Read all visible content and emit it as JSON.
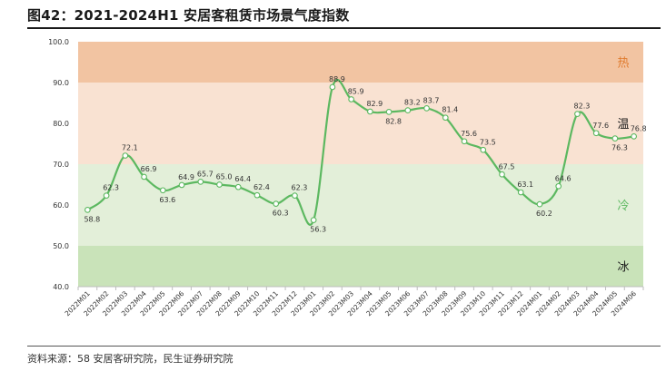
{
  "title": "图42：2021-2024H1 安居客租赁市场景气度指数",
  "source": "资料来源：58 安居客研究院，民生证券研究院",
  "chart_data": {
    "type": "line",
    "title": "图42：2021-2024H1 安居客租赁市场景气度指数",
    "xlabel": "",
    "ylabel": "",
    "ylim": [
      40.0,
      100.0
    ],
    "yticks": [
      40.0,
      50.0,
      60.0,
      70.0,
      80.0,
      90.0,
      100.0
    ],
    "grid": false,
    "categories": [
      "2022M01",
      "2022M02",
      "2022M03",
      "2022M04",
      "2022M05",
      "2022M06",
      "2022M07",
      "2022M08",
      "2022M09",
      "2022M10",
      "2022M11",
      "2022M12",
      "2023M01",
      "2023M02",
      "2023M03",
      "2023M04",
      "2023M05",
      "2023M06",
      "2023M07",
      "2023M08",
      "2023M09",
      "2023M10",
      "2023M11",
      "2023M12",
      "2024M01",
      "2024M02",
      "2024M03",
      "2024M04",
      "2024M05",
      "2024M06"
    ],
    "series": [
      {
        "values": [
          58.8,
          62.3,
          72.1,
          66.9,
          63.6,
          64.9,
          65.7,
          65.0,
          64.4,
          62.4,
          60.3,
          62.3,
          56.3,
          88.9,
          85.9,
          82.9,
          82.8,
          83.2,
          83.7,
          81.4,
          75.6,
          73.5,
          67.5,
          63.1,
          60.2,
          64.6,
          82.3,
          77.6,
          76.3,
          76.8
        ],
        "color": "#5cb860"
      }
    ],
    "value_labels": [
      "58.8",
      "62.3",
      "72.1",
      "66.9",
      "63.6",
      "64.9",
      "65.7",
      "65.0",
      "64.4",
      "62.4",
      "60.3",
      "62.3",
      "56.3",
      "88.9",
      "85.9",
      "82.9",
      "82.8",
      "83.2",
      "83.7",
      "81.4",
      "75.6",
      "73.5",
      "67.5",
      "63.1",
      "60.2",
      "64.6",
      "82.3",
      "77.6",
      "76.3",
      "76.8"
    ],
    "bands": [
      {
        "label": "热",
        "from": 90,
        "to": 100,
        "color": "#f2c4a2",
        "label_color": "#e07b2e"
      },
      {
        "label": "温",
        "from": 70,
        "to": 90,
        "color": "#f9e2d2",
        "label_color": "#1a1a1a"
      },
      {
        "label": "冷",
        "from": 50,
        "to": 70,
        "color": "#e3efd9",
        "label_color": "#5cb860"
      },
      {
        "label": "冰",
        "from": 40,
        "to": 50,
        "color": "#c9e3b9",
        "label_color": "#1a1a1a"
      }
    ]
  }
}
